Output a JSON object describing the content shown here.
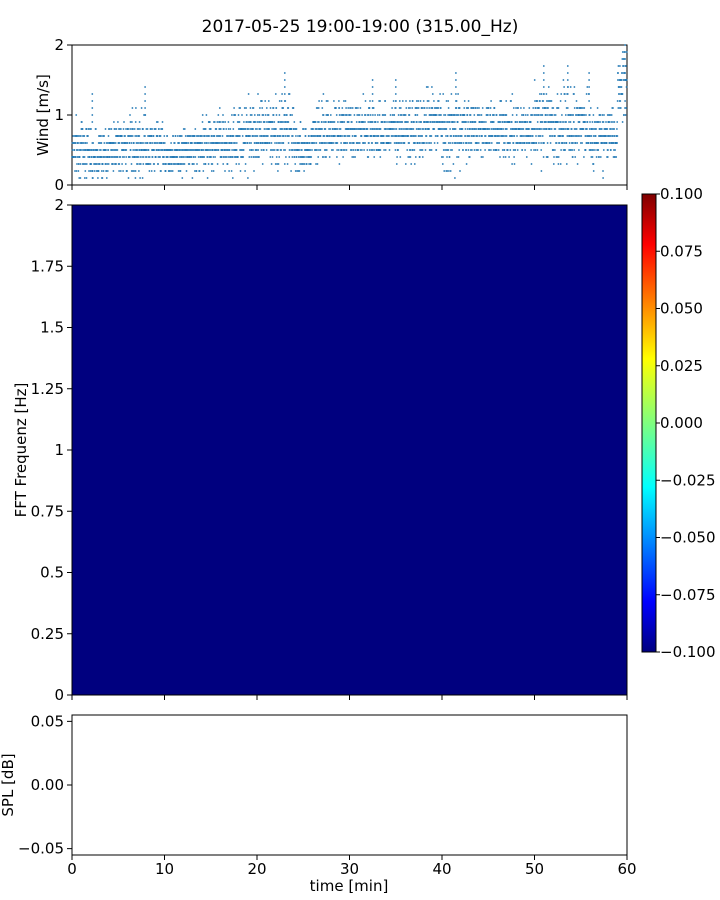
{
  "title": "2017-05-25 19:00-19:00 (315.00_Hz)",
  "chart_data": [
    {
      "type": "scatter",
      "panel": "wind",
      "ylabel": "Wind [m/s]",
      "xlim": [
        0,
        60
      ],
      "ylim": [
        0,
        2
      ],
      "y_ticks": [
        "0",
        "1",
        "2"
      ],
      "marker_color": "#1f77b4",
      "x_tick_labels_visible": false,
      "note_values": "resampled wind trace; band centre (y_mid) and spread per ~2 min segment",
      "segments": [
        {
          "x0": 0,
          "x1": 2,
          "y_mid": 0.55,
          "spread": 0.35
        },
        {
          "x0": 2,
          "x1": 4,
          "y_mid": 0.45,
          "spread": 0.3
        },
        {
          "x0": 4,
          "x1": 6,
          "y_mid": 0.55,
          "spread": 0.3
        },
        {
          "x0": 6,
          "x1": 8,
          "y_mid": 0.6,
          "spread": 0.4
        },
        {
          "x0": 8,
          "x1": 10,
          "y_mid": 0.55,
          "spread": 0.3
        },
        {
          "x0": 10,
          "x1": 12,
          "y_mid": 0.45,
          "spread": 0.25
        },
        {
          "x0": 12,
          "x1": 14,
          "y_mid": 0.5,
          "spread": 0.3
        },
        {
          "x0": 14,
          "x1": 16,
          "y_mid": 0.6,
          "spread": 0.35
        },
        {
          "x0": 16,
          "x1": 18,
          "y_mid": 0.6,
          "spread": 0.35
        },
        {
          "x0": 18,
          "x1": 20,
          "y_mid": 0.7,
          "spread": 0.4
        },
        {
          "x0": 20,
          "x1": 22,
          "y_mid": 0.75,
          "spread": 0.4
        },
        {
          "x0": 22,
          "x1": 24,
          "y_mid": 0.8,
          "spread": 0.45
        },
        {
          "x0": 24,
          "x1": 26,
          "y_mid": 0.55,
          "spread": 0.35
        },
        {
          "x0": 26,
          "x1": 28,
          "y_mid": 0.75,
          "spread": 0.35
        },
        {
          "x0": 28,
          "x1": 30,
          "y_mid": 0.8,
          "spread": 0.35
        },
        {
          "x0": 30,
          "x1": 32,
          "y_mid": 0.8,
          "spread": 0.35
        },
        {
          "x0": 32,
          "x1": 34,
          "y_mid": 0.75,
          "spread": 0.35
        },
        {
          "x0": 34,
          "x1": 36,
          "y_mid": 0.8,
          "spread": 0.35
        },
        {
          "x0": 36,
          "x1": 38,
          "y_mid": 0.8,
          "spread": 0.4
        },
        {
          "x0": 38,
          "x1": 40,
          "y_mid": 0.85,
          "spread": 0.4
        },
        {
          "x0": 40,
          "x1": 42,
          "y_mid": 0.75,
          "spread": 0.45
        },
        {
          "x0": 42,
          "x1": 44,
          "y_mid": 0.8,
          "spread": 0.35
        },
        {
          "x0": 44,
          "x1": 46,
          "y_mid": 0.8,
          "spread": 0.35
        },
        {
          "x0": 46,
          "x1": 48,
          "y_mid": 0.75,
          "spread": 0.4
        },
        {
          "x0": 48,
          "x1": 50,
          "y_mid": 0.75,
          "spread": 0.35
        },
        {
          "x0": 50,
          "x1": 52,
          "y_mid": 0.9,
          "spread": 0.45
        },
        {
          "x0": 52,
          "x1": 54,
          "y_mid": 0.85,
          "spread": 0.45
        },
        {
          "x0": 54,
          "x1": 56,
          "y_mid": 0.85,
          "spread": 0.4
        },
        {
          "x0": 56,
          "x1": 58,
          "y_mid": 0.7,
          "spread": 0.35
        },
        {
          "x0": 58,
          "x1": 59,
          "y_mid": 0.75,
          "spread": 0.35
        },
        {
          "x0": 59,
          "x1": 60,
          "y_mid": 1.4,
          "spread": 0.5
        }
      ],
      "peaks": [
        {
          "x": 7.9,
          "y": 1.4
        },
        {
          "x": 23.0,
          "y": 1.6
        },
        {
          "x": 41.5,
          "y": 1.6
        },
        {
          "x": 51.0,
          "y": 1.7
        },
        {
          "x": 53.6,
          "y": 1.7
        },
        {
          "x": 55.9,
          "y": 1.6
        },
        {
          "x": 59.8,
          "y": 2.0
        },
        {
          "x": 2.2,
          "y": 1.3
        },
        {
          "x": 32.5,
          "y": 1.5
        },
        {
          "x": 35.0,
          "y": 1.5
        }
      ]
    },
    {
      "type": "heatmap",
      "panel": "spectrogram",
      "ylabel": "FFT Frequenz [Hz]",
      "xlim": [
        0,
        60
      ],
      "ylim": [
        0,
        2
      ],
      "y_ticks": [
        "0",
        "0.25",
        "0.5",
        "0.75",
        "1",
        "1.25",
        "1.5",
        "1.75",
        "2"
      ],
      "fill_value": -0.1,
      "fill_color": "#00007f",
      "colorbar": {
        "range": [
          -0.1,
          0.1
        ],
        "ticks": [
          "0.100",
          "0.075",
          "0.050",
          "0.025",
          "0.000",
          "−0.025",
          "−0.050",
          "−0.075",
          "−0.100"
        ],
        "colormap": [
          "#00007f",
          "#0000ff",
          "#007fff",
          "#00ffff",
          "#7fff7f",
          "#ffff00",
          "#ff7f00",
          "#ff0000",
          "#7f0000"
        ]
      }
    },
    {
      "type": "line",
      "panel": "spl",
      "ylabel": "SPL [dB]",
      "xlabel": "time [min]",
      "xlim": [
        0,
        60
      ],
      "ylim": [
        -0.055,
        0.055
      ],
      "x_ticks": [
        "0",
        "10",
        "20",
        "30",
        "40",
        "50",
        "60"
      ],
      "y_ticks": [
        "0.05",
        "0.00",
        "−0.05"
      ],
      "series": []
    }
  ]
}
